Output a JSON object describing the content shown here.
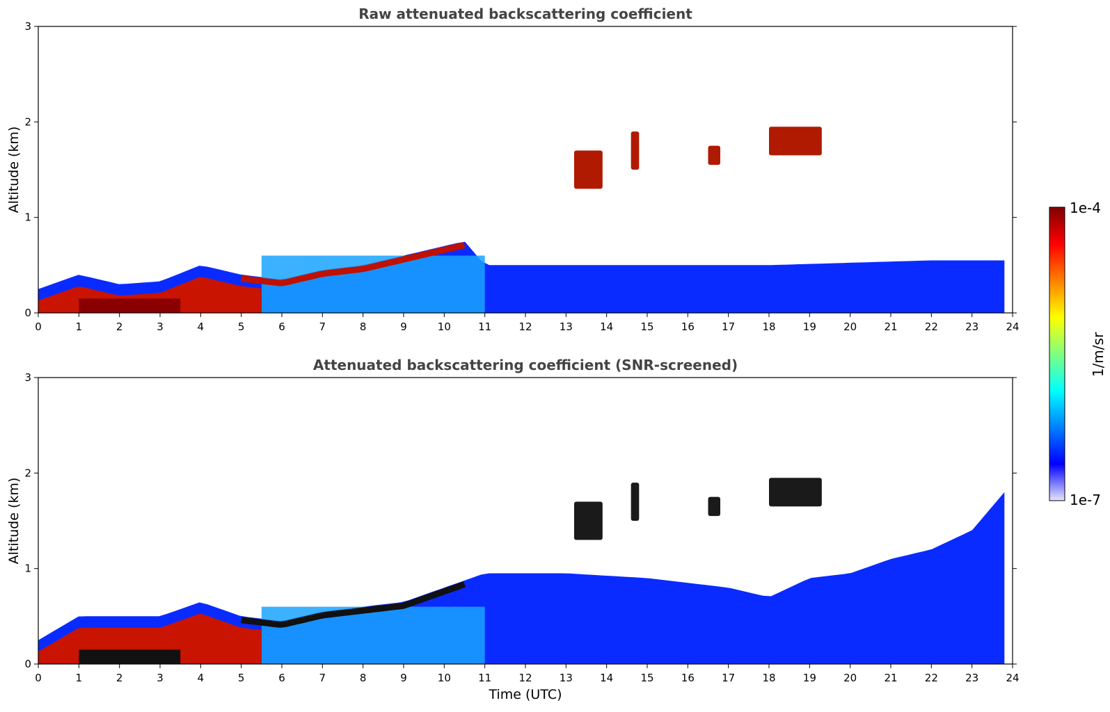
{
  "chart_data": [
    {
      "type": "heatmap",
      "title": "Raw attenuated backscattering coefficient",
      "xlabel": "",
      "ylabel": "Altitude (km)",
      "xlim": [
        0,
        24
      ],
      "ylim": [
        0,
        3
      ],
      "x_ticks": [
        "0",
        "1",
        "2",
        "3",
        "4",
        "5",
        "6",
        "7",
        "8",
        "9",
        "10",
        "11",
        "12",
        "13",
        "14",
        "15",
        "16",
        "17",
        "18",
        "19",
        "20",
        "21",
        "22",
        "23",
        "24"
      ],
      "y_ticks": [
        "0",
        "1",
        "2",
        "3"
      ],
      "layer_top_km": [
        [
          0,
          0.25
        ],
        [
          1,
          0.4
        ],
        [
          2,
          0.3
        ],
        [
          3,
          0.33
        ],
        [
          4,
          0.5
        ],
        [
          5,
          0.4
        ],
        [
          6,
          0.35
        ],
        [
          7,
          0.45
        ],
        [
          8,
          0.5
        ],
        [
          9,
          0.6
        ],
        [
          10,
          0.7
        ],
        [
          10.5,
          0.75
        ],
        [
          11,
          0.5
        ],
        [
          14,
          0.5
        ],
        [
          18,
          0.5
        ],
        [
          22,
          0.55
        ],
        [
          23.8,
          0.55
        ]
      ],
      "clouds": [
        {
          "t": [
            13.2,
            13.9
          ],
          "alt_km": [
            1.3,
            1.7
          ]
        },
        {
          "t": [
            14.6,
            14.8
          ],
          "alt_km": [
            1.5,
            1.9
          ]
        },
        {
          "t": [
            16.5,
            16.8
          ],
          "alt_km": [
            1.55,
            1.75
          ]
        },
        {
          "t": [
            18.0,
            19.3
          ],
          "alt_km": [
            1.65,
            1.95
          ]
        }
      ],
      "colorscale": "jet",
      "clim": [
        "1e-7",
        "1e-4"
      ],
      "screened": false
    },
    {
      "type": "heatmap",
      "title": "Attenuated backscattering coefficient (SNR-screened)",
      "xlabel": "Time (UTC)",
      "ylabel": "Altitude (km)",
      "xlim": [
        0,
        24
      ],
      "ylim": [
        0,
        3
      ],
      "x_ticks": [
        "0",
        "1",
        "2",
        "3",
        "4",
        "5",
        "6",
        "7",
        "8",
        "9",
        "10",
        "11",
        "12",
        "13",
        "14",
        "15",
        "16",
        "17",
        "18",
        "19",
        "20",
        "21",
        "22",
        "23",
        "24"
      ],
      "y_ticks": [
        "0",
        "1",
        "2",
        "3"
      ],
      "layer_top_km": [
        [
          0,
          0.25
        ],
        [
          1,
          0.5
        ],
        [
          2,
          0.5
        ],
        [
          3,
          0.5
        ],
        [
          4,
          0.65
        ],
        [
          5,
          0.5
        ],
        [
          6,
          0.45
        ],
        [
          7,
          0.55
        ],
        [
          8,
          0.6
        ],
        [
          9,
          0.65
        ],
        [
          10,
          0.8
        ],
        [
          11,
          0.95
        ],
        [
          13,
          0.95
        ],
        [
          15,
          0.9
        ],
        [
          16,
          0.85
        ],
        [
          17,
          0.8
        ],
        [
          18,
          0.7
        ],
        [
          19,
          0.9
        ],
        [
          20,
          0.95
        ],
        [
          21,
          1.1
        ],
        [
          22,
          1.2
        ],
        [
          23,
          1.4
        ],
        [
          23.8,
          1.8
        ]
      ],
      "clouds": [
        {
          "t": [
            13.2,
            13.9
          ],
          "alt_km": [
            1.3,
            1.7
          ]
        },
        {
          "t": [
            14.6,
            14.8
          ],
          "alt_km": [
            1.5,
            1.9
          ]
        },
        {
          "t": [
            16.5,
            16.8
          ],
          "alt_km": [
            1.55,
            1.75
          ]
        },
        {
          "t": [
            18.0,
            19.3
          ],
          "alt_km": [
            1.65,
            1.95
          ]
        }
      ],
      "colorscale": "jet",
      "clim": [
        "1e-7",
        "1e-4"
      ],
      "screened": true
    }
  ],
  "colorbar": {
    "max_label": "1e-4",
    "min_label": "1e-7",
    "unit_label": "1/m/sr",
    "stops": [
      "#e6e6fa",
      "#0000ff",
      "#0080ff",
      "#00ffff",
      "#80ff80",
      "#ffff00",
      "#ff8000",
      "#ff0000",
      "#800000"
    ]
  }
}
